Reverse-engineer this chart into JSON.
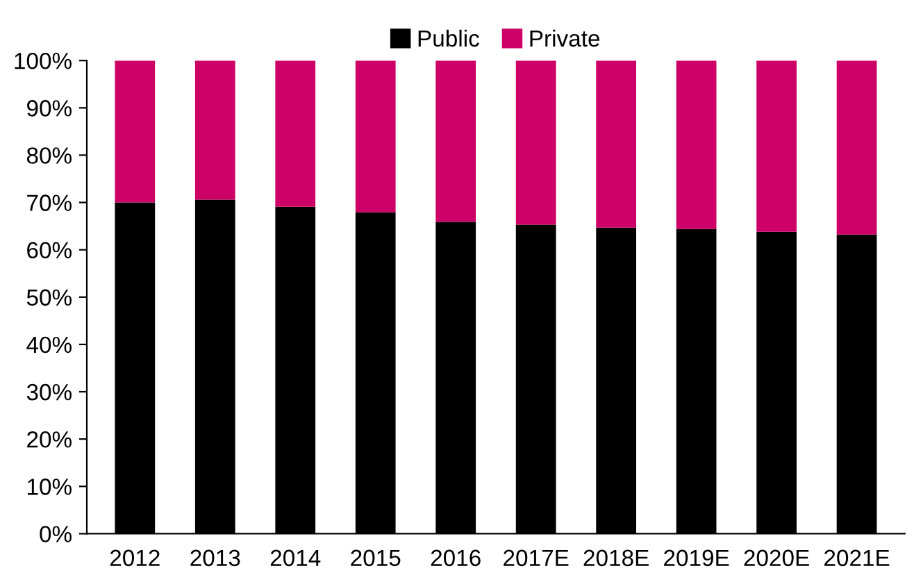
{
  "chart_data": {
    "type": "bar",
    "stacked": true,
    "categories": [
      "2012",
      "2013",
      "2014",
      "2015",
      "2016",
      "2017E",
      "2018E",
      "2019E",
      "2020E",
      "2021E"
    ],
    "series": [
      {
        "name": "Public",
        "color": "#000000",
        "values": [
          70.0,
          70.6,
          69.1,
          67.9,
          65.9,
          65.3,
          64.7,
          64.4,
          63.8,
          63.2
        ]
      },
      {
        "name": "Private",
        "color": "#cc0066",
        "values": [
          30.0,
          29.4,
          30.9,
          32.1,
          34.1,
          34.7,
          35.3,
          35.6,
          36.2,
          36.8
        ]
      }
    ],
    "ylim": [
      0,
      100
    ],
    "yticks": [
      {
        "value": 0,
        "label": "0%"
      },
      {
        "value": 10,
        "label": "10%"
      },
      {
        "value": 20,
        "label": "20%"
      },
      {
        "value": 30,
        "label": "30%"
      },
      {
        "value": 40,
        "label": "40%"
      },
      {
        "value": 50,
        "label": "50%"
      },
      {
        "value": 60,
        "label": "60%"
      },
      {
        "value": 70,
        "label": "70%"
      },
      {
        "value": 80,
        "label": "80%"
      },
      {
        "value": 90,
        "label": "90%"
      },
      {
        "value": 100,
        "label": "100%"
      }
    ],
    "grid": false,
    "legend": "top"
  }
}
